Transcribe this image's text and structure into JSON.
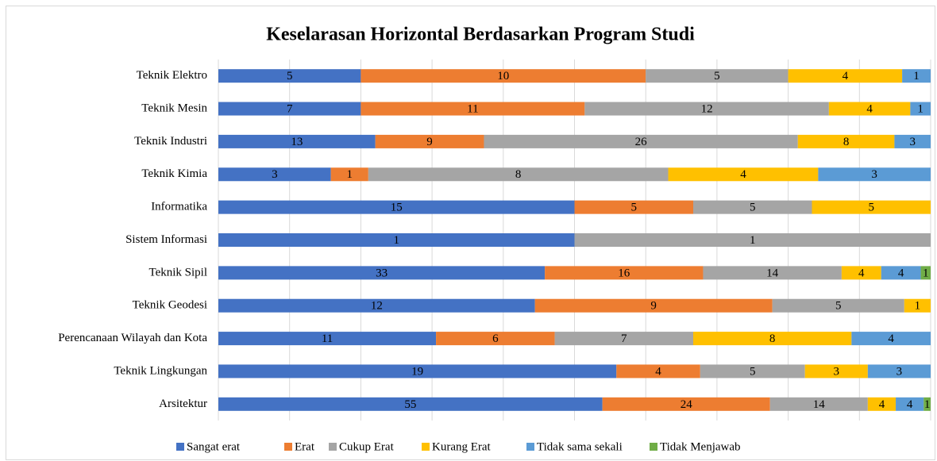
{
  "chart_data": {
    "type": "bar",
    "orientation": "horizontal",
    "stacked": "percent",
    "title": "Keselarasan Horizontal Berdasarkan  Program Studi",
    "categories": [
      "Teknik Elektro",
      "Teknik Mesin",
      "Teknik Industri",
      "Teknik Kimia",
      "Informatika",
      "Sistem Informasi",
      "Teknik Sipil",
      "Teknik Geodesi",
      "Perencanaan Wilayah dan Kota",
      "Teknik Lingkungan",
      "Arsitektur"
    ],
    "series": [
      {
        "name": "Sangat erat",
        "color": "#4472c4",
        "values": [
          5,
          7,
          13,
          3,
          15,
          1,
          33,
          12,
          11,
          19,
          55
        ]
      },
      {
        "name": "Erat",
        "color": "#ed7d31",
        "values": [
          10,
          11,
          9,
          1,
          5,
          null,
          16,
          9,
          6,
          4,
          24
        ]
      },
      {
        "name": "Cukup Erat",
        "color": "#a5a5a5",
        "values": [
          5,
          12,
          26,
          8,
          5,
          1,
          14,
          5,
          7,
          5,
          14
        ]
      },
      {
        "name": "Kurang Erat",
        "color": "#ffc000",
        "values": [
          4,
          4,
          8,
          4,
          5,
          null,
          4,
          1,
          8,
          3,
          4
        ]
      },
      {
        "name": "Tidak sama sekali",
        "color": "#5b9bd5",
        "values": [
          1,
          1,
          3,
          3,
          null,
          null,
          4,
          null,
          4,
          3,
          4
        ]
      },
      {
        "name": "Tidak Menjawab",
        "color": "#70ad47",
        "values": [
          null,
          null,
          null,
          null,
          null,
          null,
          1,
          null,
          null,
          null,
          1
        ]
      }
    ],
    "xlim": [
      0,
      100
    ],
    "xticks": [
      0,
      10,
      20,
      30,
      40,
      50,
      60,
      70,
      80,
      90,
      100
    ],
    "grid": true,
    "legend": "bottom"
  }
}
